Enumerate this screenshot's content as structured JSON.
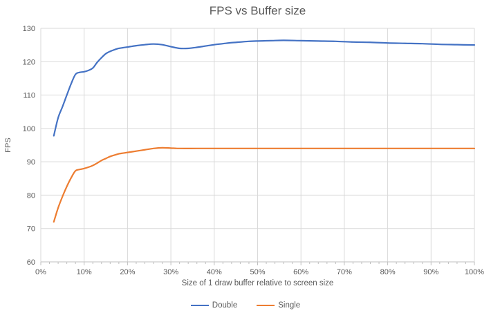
{
  "chart_data": {
    "type": "line",
    "title": "FPS vs Buffer size",
    "xlabel": "Size of 1 draw buffer relative to screen size",
    "ylabel": "FPS",
    "xlim": [
      0,
      100
    ],
    "ylim": [
      60,
      130
    ],
    "grid": "both",
    "legend_position": "bottom-center",
    "colors": {
      "gridline": "#D9D9D9",
      "axis_line": "#BFBFBF",
      "text": "#595959",
      "background": "#FFFFFF"
    },
    "x_tick_values": [
      0,
      10,
      20,
      30,
      40,
      50,
      60,
      70,
      80,
      90,
      100
    ],
    "x_tick_labels": [
      "0%",
      "10%",
      "20%",
      "30%",
      "40%",
      "50%",
      "60%",
      "70%",
      "80%",
      "90%",
      "100%"
    ],
    "x_minor_tick_step": 2,
    "y_tick_values": [
      60,
      70,
      80,
      90,
      100,
      110,
      120,
      130
    ],
    "y_tick_labels": [
      "60",
      "70",
      "80",
      "90",
      "100",
      "110",
      "120",
      "130"
    ],
    "series": [
      {
        "name": "Double",
        "color": "#4472C4",
        "points": [
          [
            3,
            97.8
          ],
          [
            4,
            103.2
          ],
          [
            5,
            106.5
          ],
          [
            6,
            110
          ],
          [
            7,
            113.4
          ],
          [
            8,
            116.2
          ],
          [
            9,
            116.8
          ],
          [
            10,
            117
          ],
          [
            11,
            117.4
          ],
          [
            12,
            118.1
          ],
          [
            13,
            119.8
          ],
          [
            14,
            121.2
          ],
          [
            15,
            122.4
          ],
          [
            16,
            123.1
          ],
          [
            17,
            123.6
          ],
          [
            18,
            124
          ],
          [
            19,
            124.2
          ],
          [
            20,
            124.4
          ],
          [
            22,
            124.8
          ],
          [
            24,
            125.1
          ],
          [
            26,
            125.3
          ],
          [
            28,
            125.1
          ],
          [
            30,
            124.5
          ],
          [
            32,
            124
          ],
          [
            34,
            124
          ],
          [
            36,
            124.3
          ],
          [
            38,
            124.7
          ],
          [
            40,
            125.1
          ],
          [
            42,
            125.4
          ],
          [
            44,
            125.7
          ],
          [
            46,
            125.9
          ],
          [
            48,
            126.1
          ],
          [
            50,
            126.2
          ],
          [
            53,
            126.3
          ],
          [
            56,
            126.4
          ],
          [
            60,
            126.3
          ],
          [
            64,
            126.2
          ],
          [
            68,
            126.1
          ],
          [
            72,
            125.9
          ],
          [
            76,
            125.8
          ],
          [
            80,
            125.6
          ],
          [
            84,
            125.5
          ],
          [
            88,
            125.4
          ],
          [
            92,
            125.2
          ],
          [
            96,
            125.1
          ],
          [
            100,
            125
          ]
        ]
      },
      {
        "name": "Single",
        "color": "#ED7D31",
        "points": [
          [
            3,
            72
          ],
          [
            4,
            76.2
          ],
          [
            5,
            79.6
          ],
          [
            6,
            82.6
          ],
          [
            7,
            85.2
          ],
          [
            8,
            87.3
          ],
          [
            9,
            87.7
          ],
          [
            10,
            88
          ],
          [
            11,
            88.4
          ],
          [
            12,
            88.9
          ],
          [
            13,
            89.6
          ],
          [
            14,
            90.4
          ],
          [
            15,
            91
          ],
          [
            16,
            91.6
          ],
          [
            17,
            92
          ],
          [
            18,
            92.4
          ],
          [
            19,
            92.6
          ],
          [
            20,
            92.8
          ],
          [
            22,
            93.2
          ],
          [
            24,
            93.6
          ],
          [
            26,
            94
          ],
          [
            28,
            94.2
          ],
          [
            30,
            94.1
          ],
          [
            32,
            94
          ],
          [
            36,
            94
          ],
          [
            40,
            94
          ],
          [
            45,
            94
          ],
          [
            50,
            94
          ],
          [
            55,
            94
          ],
          [
            60,
            94
          ],
          [
            65,
            94
          ],
          [
            70,
            94
          ],
          [
            75,
            94
          ],
          [
            80,
            94
          ],
          [
            85,
            94
          ],
          [
            90,
            94
          ],
          [
            95,
            94
          ],
          [
            100,
            94
          ]
        ]
      }
    ]
  }
}
